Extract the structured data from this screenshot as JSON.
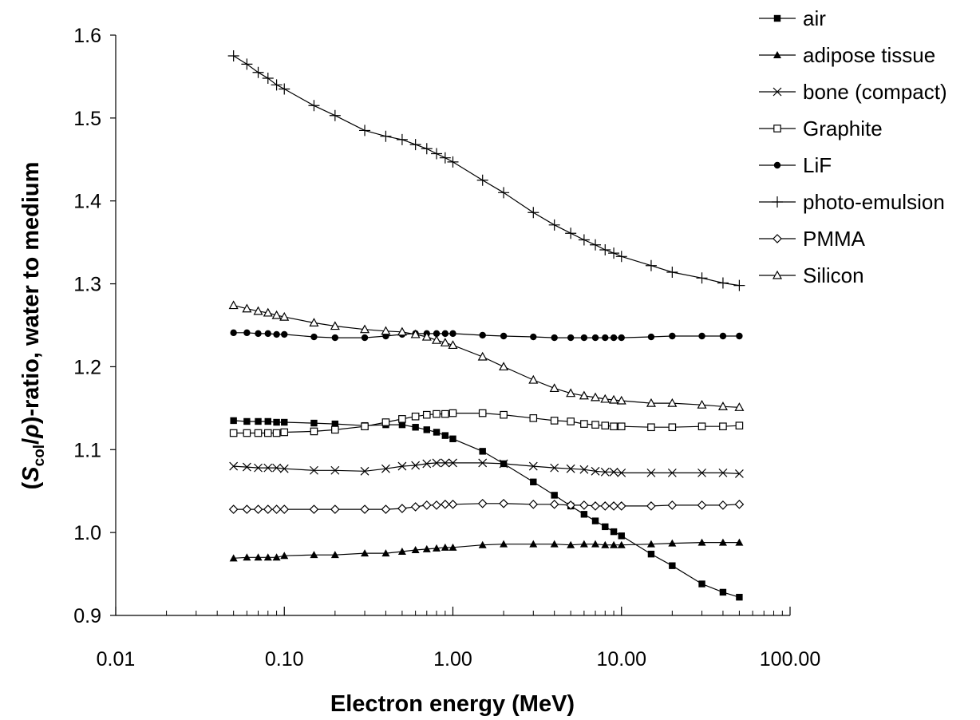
{
  "chart_data": {
    "type": "line",
    "xlabel": "Electron energy (MeV)",
    "ylabel": {
      "prefix": "(",
      "S": "S",
      "sub": "col",
      "slash": "/",
      "rho": "ρ",
      "suffix": ")-ratio, water to medium"
    },
    "xscale": "log",
    "xlim": [
      0.01,
      100
    ],
    "ylim": [
      0.9,
      1.6
    ],
    "xticks": [
      0.01,
      0.1,
      1,
      10,
      100
    ],
    "xtick_labels": [
      "0.01",
      "0.10",
      "1.00",
      "10.00",
      "100.00"
    ],
    "yticks": [
      0.9,
      1.0,
      1.1,
      1.2,
      1.3,
      1.4,
      1.5,
      1.6
    ],
    "ytick_labels": [
      "0.9",
      "1.0",
      "1.1",
      "1.2",
      "1.3",
      "1.4",
      "1.5",
      "1.6"
    ],
    "grid": false,
    "legend": "top-right",
    "x": [
      0.05,
      0.06,
      0.07,
      0.08,
      0.09,
      0.1,
      0.15,
      0.2,
      0.3,
      0.4,
      0.5,
      0.6,
      0.7,
      0.8,
      0.9,
      1.0,
      1.5,
      2,
      3,
      4,
      5,
      6,
      7,
      8,
      9,
      10,
      15,
      20,
      30,
      40,
      50
    ],
    "series": [
      {
        "name": "air",
        "marker": "square-filled",
        "values": [
          1.135,
          1.134,
          1.134,
          1.134,
          1.133,
          1.133,
          1.132,
          1.131,
          1.129,
          1.13,
          1.13,
          1.127,
          1.124,
          1.121,
          1.117,
          1.113,
          1.098,
          1.083,
          1.061,
          1.045,
          1.032,
          1.022,
          1.014,
          1.007,
          1.001,
          0.996,
          0.974,
          0.96,
          0.938,
          0.928,
          0.922
        ]
      },
      {
        "name": "adipose tissue",
        "marker": "triangle-filled",
        "values": [
          0.969,
          0.97,
          0.97,
          0.97,
          0.97,
          0.972,
          0.973,
          0.973,
          0.975,
          0.975,
          0.977,
          0.979,
          0.98,
          0.981,
          0.982,
          0.982,
          0.985,
          0.986,
          0.986,
          0.986,
          0.985,
          0.986,
          0.986,
          0.985,
          0.985,
          0.985,
          0.986,
          0.987,
          0.988,
          0.988,
          0.988
        ]
      },
      {
        "name": "bone (compact)",
        "marker": "x",
        "values": [
          1.08,
          1.079,
          1.078,
          1.078,
          1.078,
          1.077,
          1.075,
          1.075,
          1.074,
          1.077,
          1.08,
          1.081,
          1.083,
          1.084,
          1.084,
          1.084,
          1.084,
          1.083,
          1.08,
          1.078,
          1.077,
          1.076,
          1.074,
          1.073,
          1.073,
          1.072,
          1.072,
          1.072,
          1.072,
          1.072,
          1.071
        ]
      },
      {
        "name": "Graphite",
        "marker": "square-open",
        "values": [
          1.12,
          1.12,
          1.12,
          1.12,
          1.12,
          1.121,
          1.122,
          1.124,
          1.128,
          1.133,
          1.137,
          1.14,
          1.142,
          1.143,
          1.143,
          1.144,
          1.144,
          1.142,
          1.138,
          1.135,
          1.134,
          1.131,
          1.13,
          1.129,
          1.128,
          1.128,
          1.127,
          1.127,
          1.128,
          1.128,
          1.129
        ]
      },
      {
        "name": "LiF",
        "marker": "circle-filled",
        "values": [
          1.241,
          1.241,
          1.24,
          1.24,
          1.239,
          1.239,
          1.236,
          1.235,
          1.235,
          1.237,
          1.239,
          1.24,
          1.24,
          1.24,
          1.24,
          1.24,
          1.238,
          1.237,
          1.236,
          1.235,
          1.235,
          1.235,
          1.235,
          1.235,
          1.235,
          1.235,
          1.236,
          1.237,
          1.237,
          1.237,
          1.237
        ]
      },
      {
        "name": "photo-emulsion",
        "marker": "plus",
        "values": [
          1.575,
          1.565,
          1.555,
          1.548,
          1.54,
          1.535,
          1.515,
          1.503,
          1.485,
          1.478,
          1.474,
          1.468,
          1.463,
          1.457,
          1.452,
          1.447,
          1.425,
          1.41,
          1.386,
          1.371,
          1.361,
          1.353,
          1.347,
          1.341,
          1.337,
          1.333,
          1.322,
          1.314,
          1.307,
          1.301,
          1.298
        ]
      },
      {
        "name": "PMMA",
        "marker": "diamond-open",
        "values": [
          1.028,
          1.028,
          1.028,
          1.028,
          1.028,
          1.028,
          1.028,
          1.028,
          1.028,
          1.028,
          1.029,
          1.031,
          1.033,
          1.033,
          1.034,
          1.034,
          1.035,
          1.035,
          1.034,
          1.034,
          1.033,
          1.033,
          1.032,
          1.032,
          1.032,
          1.032,
          1.032,
          1.033,
          1.033,
          1.033,
          1.034
        ]
      },
      {
        "name": "Silicon",
        "marker": "triangle-open",
        "values": [
          1.274,
          1.27,
          1.267,
          1.265,
          1.262,
          1.26,
          1.253,
          1.249,
          1.245,
          1.243,
          1.242,
          1.239,
          1.236,
          1.232,
          1.229,
          1.226,
          1.212,
          1.2,
          1.184,
          1.174,
          1.168,
          1.165,
          1.163,
          1.161,
          1.16,
          1.159,
          1.156,
          1.156,
          1.154,
          1.152,
          1.151
        ]
      }
    ]
  }
}
